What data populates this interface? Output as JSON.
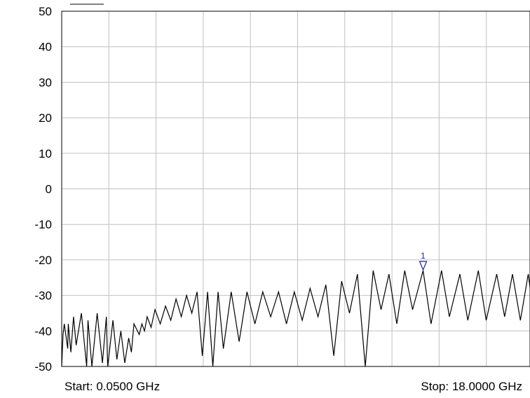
{
  "chart_data": {
    "type": "line",
    "start_label": "Start: 0.0500 GHz",
    "stop_label": "Stop: 18.0000 GHz",
    "x_start_ghz": 0.05,
    "x_end_ghz": 18.0,
    "ylim": [
      -50,
      50
    ],
    "y_ticks": [
      "50",
      "40",
      "30",
      "20",
      "10",
      "0",
      "-10",
      "-20",
      "-30",
      "-40",
      "-50"
    ],
    "grid": true,
    "colors": {
      "trace": "#000000",
      "grid": "#c0c0c0",
      "marker": "#1f1fa0"
    },
    "marker": {
      "label": "1",
      "x_ghz": 13.8,
      "y_db": -22.8
    },
    "x": [
      0.05,
      0.1,
      0.15,
      0.28,
      0.3,
      0.4,
      0.5,
      0.6,
      0.8,
      1.0,
      1.05,
      1.2,
      1.4,
      1.6,
      1.75,
      1.8,
      2.0,
      2.15,
      2.3,
      2.45,
      2.6,
      2.7,
      2.8,
      3.0,
      3.1,
      3.2,
      3.3,
      3.45,
      3.6,
      3.8,
      4.0,
      4.2,
      4.4,
      4.6,
      4.8,
      5.0,
      5.2,
      5.4,
      5.6,
      5.8,
      6.0,
      6.2,
      6.5,
      6.8,
      7.1,
      7.4,
      7.7,
      8.0,
      8.3,
      8.6,
      8.9,
      9.2,
      9.5,
      9.8,
      10.1,
      10.4,
      10.7,
      11.0,
      11.3,
      11.6,
      11.9,
      12.2,
      12.5,
      12.8,
      13.1,
      13.4,
      13.8,
      14.1,
      14.5,
      14.8,
      15.2,
      15.5,
      15.9,
      16.2,
      16.6,
      16.9,
      17.2,
      17.5,
      17.8,
      18.0
    ],
    "y": [
      -50,
      -41,
      -38,
      -45,
      -38,
      -46,
      -36,
      -44,
      -35,
      -50,
      -37,
      -50,
      -35,
      -49,
      -36,
      -50,
      -37,
      -48,
      -40,
      -49,
      -42,
      -46,
      -38,
      -41,
      -38,
      -40,
      -36,
      -39,
      -34,
      -38,
      -33,
      -37,
      -31,
      -36,
      -30,
      -35,
      -29,
      -47,
      -29,
      -50,
      -29,
      -45,
      -29,
      -43,
      -29,
      -38,
      -29,
      -36,
      -29,
      -38,
      -29,
      -37,
      -28,
      -36,
      -27,
      -47,
      -26,
      -35,
      -24,
      -50,
      -23,
      -34,
      -24,
      -38,
      -23,
      -34,
      -23,
      -38,
      -23,
      -36,
      -24,
      -37,
      -23,
      -37,
      -24,
      -36,
      -24,
      -37,
      -24,
      -35
    ]
  }
}
